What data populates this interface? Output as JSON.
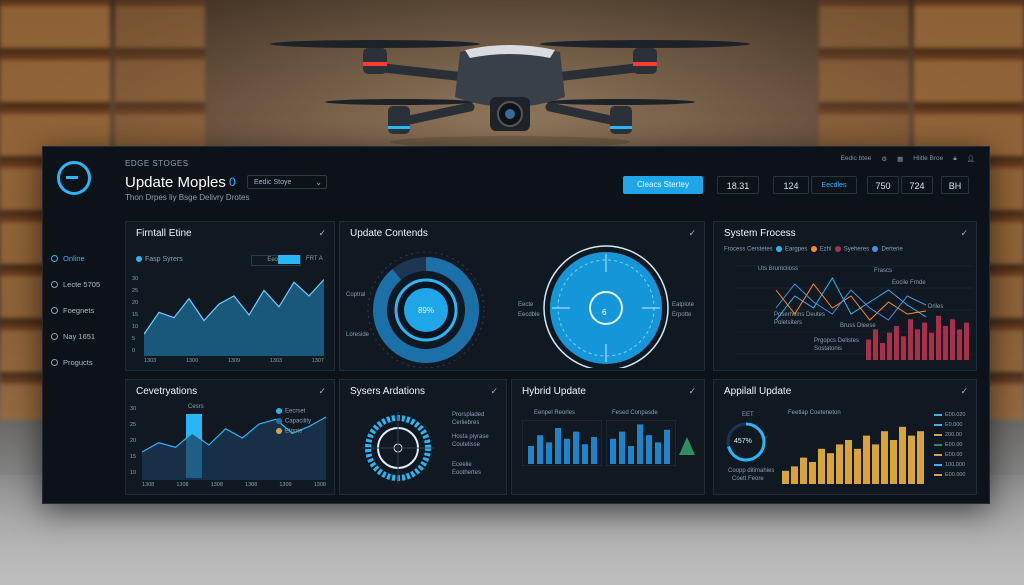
{
  "header": {
    "eyebrow": "EDGE STOGES",
    "title": "Update Moples",
    "title_badge": "0",
    "subtitle": "Thon Drpes liy Bsge Delivry Drotes",
    "select_value": "Eedic Stoye",
    "top_icons": [
      "Eedic btee",
      "Hlitle Broe"
    ],
    "cta_label": "Cleacs Stertey",
    "stats": [
      "18.31",
      "124",
      "Eecdles",
      "750",
      "724",
      "BH"
    ]
  },
  "sidebar": {
    "items": [
      {
        "label": "Online",
        "active": true
      },
      {
        "label": "Lecte 5705"
      },
      {
        "label": "Foegnets"
      },
      {
        "label": "Nay 1651"
      },
      {
        "label": "Progucts"
      }
    ]
  },
  "cards": {
    "firmware": {
      "title": "Firntall Etine",
      "legend": "Fasp Syrers",
      "chip_a": "Eeorle",
      "chip_b": "FRT A",
      "yticks": [
        "30",
        "25",
        "20",
        "15",
        "10",
        "5",
        "0"
      ],
      "xticks": [
        "1303",
        "1300",
        "1309",
        "1303",
        "1307"
      ]
    },
    "update_contents": {
      "title": "Update Contends",
      "donut_value": "89%",
      "dial_value": "6",
      "donut_labels": [
        "Coptral",
        "Loreside"
      ],
      "dial_labels": [
        "Eecte",
        "Eecdble",
        "Eatplote",
        "Erpotte"
      ]
    },
    "system_process": {
      "title": "System Frocess",
      "legend": [
        "Frocess Cerstetes",
        "Eargpes",
        "Ezhl",
        "Syeheres",
        "Derterie"
      ],
      "notes": [
        "Uts Bruntclioss",
        "Frascs",
        "Eocile Frnde",
        "Driles",
        "Poserhoms Deutes",
        "Poletsiters",
        "Bruss Dleese",
        "Prgopcs Delistes",
        "Sostatonis"
      ]
    },
    "deliveries": {
      "title": "Cevetryations",
      "bar_label": "Cesrs",
      "legend": [
        "Eecrset",
        "Capacility",
        "Etgote"
      ],
      "yticks": [
        "30",
        "25",
        "20",
        "15",
        "10"
      ],
      "xticks": [
        "1308",
        "1308",
        "1308",
        "1308",
        "1309",
        "1308"
      ]
    },
    "system_operations": {
      "title": "Sysers Ardations",
      "labels": [
        "Prorspladed",
        "Cerliebres",
        "Hosta plyrase",
        "Coutelisse",
        "Eceelie",
        "Eoothertes"
      ]
    },
    "hybrid": {
      "title": "Hybrid Update",
      "sub_a": "Eenpel Reorles",
      "sub_b": "Fesed Conpasde"
    },
    "applied": {
      "title": "Appilall Update",
      "gauge_value": "457%",
      "gauge_caption": "EET",
      "gauge_caption2": "Coopp ditimahies",
      "gauge_caption3": "Coett Feore",
      "sub": "Feetlap Coeteneton",
      "right_labels": [
        "E00.020",
        "E0.000",
        "200.00",
        "E00.00",
        "E00.00",
        "100.000",
        "E00.000"
      ]
    }
  },
  "colors": {
    "accent": "#29b6f6",
    "orange": "#ff8c2a",
    "gold": "#d9a43a",
    "maroon": "#a8304a",
    "panel": "#0d1219"
  },
  "chart_data": [
    {
      "type": "area",
      "series": [
        {
          "values": [
            8,
            16,
            14,
            21,
            13,
            19,
            22,
            15,
            24,
            18,
            27,
            22,
            28
          ]
        }
      ],
      "ylim": [
        0,
        30
      ]
    },
    {
      "type": "line",
      "series": [
        {
          "name": "Eargpes",
          "values": [
            10,
            18,
            14,
            24,
            12,
            16,
            20,
            15,
            11
          ]
        },
        {
          "name": "Ezhl",
          "values": [
            20,
            12,
            22,
            14,
            18,
            10,
            16,
            12,
            13
          ]
        },
        {
          "name": "Syeheres",
          "values": [
            14,
            22,
            16,
            12,
            20,
            14,
            10,
            18,
            15
          ]
        }
      ]
    },
    {
      "type": "bar",
      "series": [
        {
          "values": [
            6,
            9,
            5,
            8,
            10,
            7,
            12,
            9,
            11,
            8,
            13,
            10,
            12,
            9,
            11
          ]
        }
      ]
    },
    {
      "type": "bar",
      "series": [
        {
          "values": [
            3,
            4,
            6,
            5,
            8,
            7,
            9,
            10,
            8,
            11,
            9,
            12,
            10,
            13,
            11,
            12
          ]
        }
      ]
    },
    {
      "type": "line",
      "series": [
        {
          "values": [
            12,
            16,
            14,
            20,
            15,
            22,
            18,
            24,
            26,
            20,
            23,
            27
          ]
        }
      ],
      "ylim": [
        0,
        30
      ]
    }
  ]
}
